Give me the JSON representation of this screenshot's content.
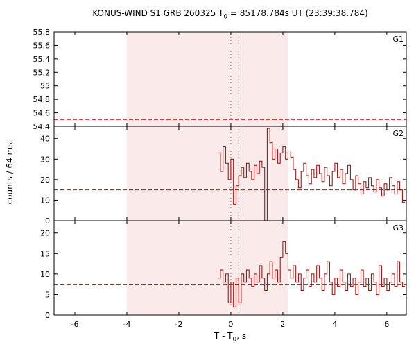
{
  "title": {
    "pre": "KONUS-WIND S1 GRB 260325 T",
    "sub": "0",
    "post": " = 85178.784s UT (23:39:38.784)"
  },
  "axes": {
    "ylabel": "counts / 64 ms",
    "xlabel_pre": "T - T",
    "xlabel_sub": "0",
    "xlabel_post": ", s"
  },
  "colors": {
    "trace": "#a40000",
    "background_line": "#cc0000",
    "shade": "#fbeaea",
    "frame": "#000000",
    "dotted": "#8a8a8a"
  },
  "chart_data": {
    "type": "line",
    "subtype": "step-histogram-light-curve",
    "title": "KONUS-WIND S1 GRB 260325 T0 = 85178.784s UT (23:39:38.784)",
    "xlabel": "T - T0, s",
    "ylabel": "counts / 64 ms",
    "xlim": [
      -6.8,
      6.75
    ],
    "xticks": [
      -6,
      -4,
      -2,
      0,
      2,
      4,
      6
    ],
    "shaded_region": [
      -4.0,
      2.2
    ],
    "dotted_vlines": [
      0.0,
      0.3
    ],
    "t_start": -0.5,
    "bin_width": 0.1,
    "legend_position": "top-right-inside",
    "grid": false,
    "panels": [
      {
        "label": "G1",
        "ylim": [
          54.4,
          55.8
        ],
        "yticks": [
          54.4,
          54.6,
          54.8,
          55,
          55.2,
          55.4,
          55.6,
          55.8
        ],
        "background": 54.5,
        "values": []
      },
      {
        "label": "G2",
        "ylim": [
          0,
          46
        ],
        "yticks": [
          0,
          10,
          20,
          30,
          40
        ],
        "background": 15,
        "values": [
          33,
          24,
          36,
          28,
          20,
          30,
          8,
          17,
          22,
          26,
          21,
          28,
          24,
          20,
          27,
          23,
          29,
          26,
          0,
          45,
          38,
          30,
          35,
          28,
          33,
          36,
          30,
          34,
          31,
          25,
          20,
          16,
          24,
          28,
          22,
          18,
          25,
          21,
          27,
          23,
          19,
          26,
          22,
          17,
          24,
          28,
          21,
          25,
          18,
          23,
          27,
          20,
          15,
          22,
          18,
          13,
          19,
          16,
          21,
          17,
          14,
          20,
          16,
          12,
          18,
          15,
          21,
          17,
          13,
          19,
          15,
          9
        ]
      },
      {
        "label": "G3",
        "ylim": [
          0,
          23
        ],
        "yticks": [
          0,
          5,
          10,
          15,
          20
        ],
        "background": 7.5,
        "values": [
          9,
          11,
          8,
          10,
          3,
          8,
          2,
          9,
          3,
          10,
          8,
          11,
          9,
          7,
          10,
          8,
          12,
          9,
          6,
          10,
          13,
          9,
          11,
          8,
          14,
          18,
          15,
          11,
          9,
          12,
          8,
          10,
          6,
          9,
          11,
          7,
          10,
          8,
          12,
          9,
          6,
          10,
          13,
          8,
          5,
          9,
          7,
          11,
          8,
          6,
          10,
          7,
          9,
          5,
          8,
          11,
          7,
          9,
          6,
          10,
          8,
          5,
          12,
          7,
          9,
          6,
          8,
          10,
          7,
          13,
          8,
          7
        ]
      }
    ]
  }
}
